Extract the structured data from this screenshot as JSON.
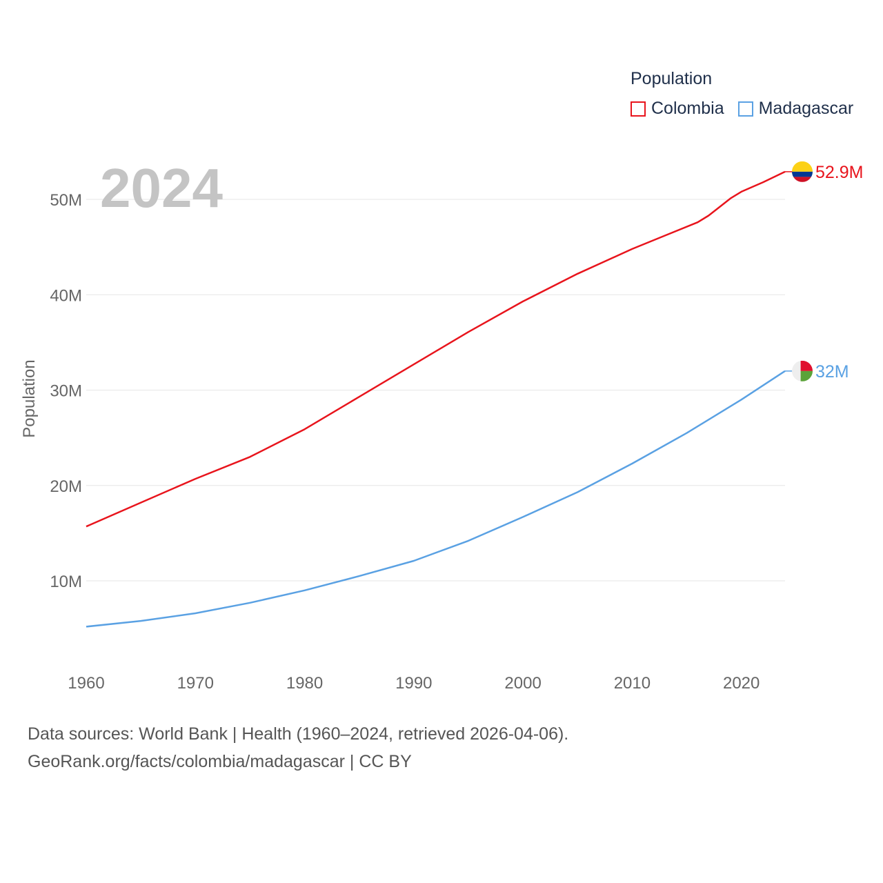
{
  "legend": {
    "title": "Population",
    "items": [
      {
        "label": "Colombia",
        "color": "#e8141c"
      },
      {
        "label": "Madagascar",
        "color": "#5aa1e3"
      }
    ]
  },
  "chart_data": {
    "type": "line",
    "year_label": "2024",
    "ylabel": "Population",
    "xlim": [
      1960,
      2024
    ],
    "ylim": [
      0,
      55000000
    ],
    "x_ticks": [
      1960,
      1970,
      1980,
      1990,
      2000,
      2010,
      2020
    ],
    "x_tick_labels": [
      "1960",
      "1970",
      "1980",
      "1990",
      "2000",
      "2010",
      "2020"
    ],
    "y_ticks": [
      10000000,
      20000000,
      30000000,
      40000000,
      50000000
    ],
    "y_tick_labels": [
      "10M",
      "20M",
      "30M",
      "40M",
      "50M"
    ],
    "series": [
      {
        "name": "Colombia",
        "color": "#e8141c",
        "end_label": "52.9M",
        "flag": "colombia-flag-icon",
        "x": [
          1960,
          1965,
          1970,
          1975,
          1980,
          1985,
          1990,
          1995,
          2000,
          2005,
          2010,
          2013,
          2016,
          2017,
          2018,
          2019,
          2020,
          2022,
          2024
        ],
        "y": [
          15700000,
          18200000,
          20700000,
          23000000,
          25900000,
          29300000,
          32700000,
          36100000,
          39300000,
          42200000,
          44800000,
          46200000,
          47600000,
          48300000,
          49200000,
          50100000,
          50800000,
          51800000,
          52900000
        ]
      },
      {
        "name": "Madagascar",
        "color": "#5aa1e3",
        "end_label": "32M",
        "flag": "madagascar-flag-icon",
        "x": [
          1960,
          1965,
          1970,
          1975,
          1980,
          1985,
          1990,
          1995,
          2000,
          2005,
          2010,
          2015,
          2020,
          2024
        ],
        "y": [
          5200000,
          5800000,
          6600000,
          7700000,
          9000000,
          10500000,
          12100000,
          14200000,
          16700000,
          19300000,
          22300000,
          25500000,
          29000000,
          32000000
        ]
      }
    ]
  },
  "footer": {
    "line1": "Data sources: World Bank | Health (1960–2024, retrieved 2026-04-06).",
    "line2": "GeoRank.org/facts/colombia/madagascar | CC BY"
  }
}
